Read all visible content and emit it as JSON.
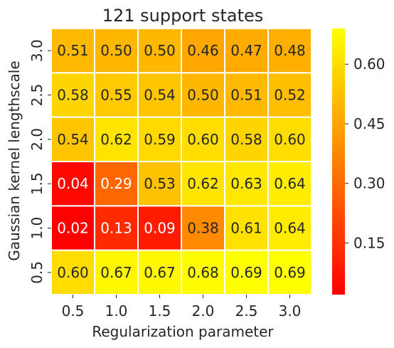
{
  "chart_data": {
    "type": "heatmap",
    "title": "121 support states",
    "xlabel": "Regularization parameter",
    "ylabel": "Gaussian kernel lengthscale",
    "x": [
      "0.5",
      "1.0",
      "1.5",
      "2.0",
      "2.5",
      "3.0"
    ],
    "y": [
      "3.0",
      "2.5",
      "2.0",
      "1.5",
      "1.0",
      "0.5"
    ],
    "values": [
      [
        0.51,
        0.5,
        0.5,
        0.46,
        0.47,
        0.48
      ],
      [
        0.58,
        0.55,
        0.54,
        0.5,
        0.51,
        0.52
      ],
      [
        0.54,
        0.62,
        0.59,
        0.6,
        0.58,
        0.6
      ],
      [
        0.04,
        0.29,
        0.53,
        0.62,
        0.63,
        0.64
      ],
      [
        0.02,
        0.13,
        0.09,
        0.38,
        0.61,
        0.64
      ],
      [
        0.6,
        0.67,
        0.67,
        0.68,
        0.69,
        0.69
      ]
    ],
    "value_labels": [
      [
        "0.51",
        "0.50",
        "0.50",
        "0.46",
        "0.47",
        "0.48"
      ],
      [
        "0.58",
        "0.55",
        "0.54",
        "0.50",
        "0.51",
        "0.52"
      ],
      [
        "0.54",
        "0.62",
        "0.59",
        "0.60",
        "0.58",
        "0.60"
      ],
      [
        "0.04",
        "0.29",
        "0.53",
        "0.62",
        "0.63",
        "0.64"
      ],
      [
        "0.02",
        "0.13",
        "0.09",
        "0.38",
        "0.61",
        "0.64"
      ],
      [
        "0.60",
        "0.67",
        "0.67",
        "0.68",
        "0.69",
        "0.69"
      ]
    ],
    "colorscale": {
      "name": "autumn",
      "min": 0.02,
      "max": 0.69,
      "low_color": "#ff0000",
      "high_color": "#ffff00"
    },
    "colorbar_ticks": [
      0.15,
      0.3,
      0.45,
      0.6
    ],
    "colorbar_tick_labels": [
      "0.15",
      "0.30",
      "0.45",
      "0.60"
    ],
    "grid_line_color": "#ffffff"
  }
}
